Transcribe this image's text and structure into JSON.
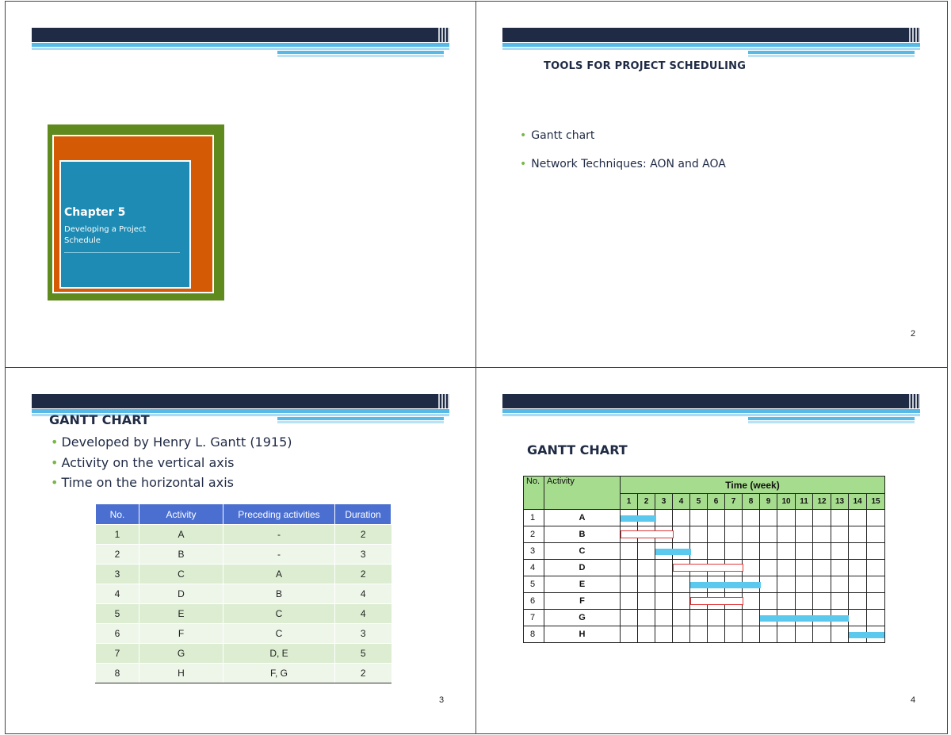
{
  "slides": [
    {
      "page": "",
      "chapter_title": "Chapter 5",
      "chapter_subtitle": "Developing a Project Schedule"
    },
    {
      "page": "2",
      "title": "TOOLS FOR PROJECT SCHEDULING",
      "bullets": [
        "Gantt chart",
        "Network Techniques: AON and AOA"
      ]
    },
    {
      "page": "3",
      "title": "GANTT CHART",
      "bullets": [
        "Developed by Henry L. Gantt (1915)",
        "Activity on the vertical axis",
        "Time on the horizontal axis"
      ],
      "table": {
        "headers": [
          "No.",
          "Activity",
          "Preceding activities",
          "Duration"
        ],
        "rows": [
          [
            "1",
            "A",
            "-",
            "2"
          ],
          [
            "2",
            "B",
            "-",
            "3"
          ],
          [
            "3",
            "C",
            "A",
            "2"
          ],
          [
            "4",
            "D",
            "B",
            "4"
          ],
          [
            "5",
            "E",
            "C",
            "4"
          ],
          [
            "6",
            "F",
            "C",
            "3"
          ],
          [
            "7",
            "G",
            "D, E",
            "5"
          ],
          [
            "8",
            "H",
            "F, G",
            "2"
          ]
        ]
      }
    },
    {
      "page": "4",
      "title": "GANTT CHART",
      "gantt": {
        "col_no": "No.",
        "col_activity": "Activity",
        "time_label": "Time (week)",
        "weeks": [
          "1",
          "2",
          "3",
          "4",
          "5",
          "6",
          "7",
          "8",
          "9",
          "10",
          "11",
          "12",
          "13",
          "14",
          "15"
        ],
        "rows": [
          {
            "no": "1",
            "activity": "A",
            "start": 1,
            "end": 2,
            "kind": "critical"
          },
          {
            "no": "2",
            "activity": "B",
            "start": 1,
            "end": 3,
            "kind": "slack"
          },
          {
            "no": "3",
            "activity": "C",
            "start": 3,
            "end": 4,
            "kind": "critical"
          },
          {
            "no": "4",
            "activity": "D",
            "start": 4,
            "end": 7,
            "kind": "slack"
          },
          {
            "no": "5",
            "activity": "E",
            "start": 5,
            "end": 8,
            "kind": "critical"
          },
          {
            "no": "6",
            "activity": "F",
            "start": 5,
            "end": 7,
            "kind": "slack"
          },
          {
            "no": "7",
            "activity": "G",
            "start": 9,
            "end": 13,
            "kind": "critical"
          },
          {
            "no": "8",
            "activity": "H",
            "start": 14,
            "end": 15,
            "kind": "critical"
          }
        ]
      }
    }
  ],
  "colors": {
    "navy": "#1f2a44",
    "sky": "#57b9e6",
    "bullet_green": "#7ab648",
    "table_header_blue": "#4a6fd0",
    "gantt_header_green": "#a6dc8e",
    "critical_bar": "#5bc8ee",
    "slack_bar_border": "#e0393b"
  }
}
